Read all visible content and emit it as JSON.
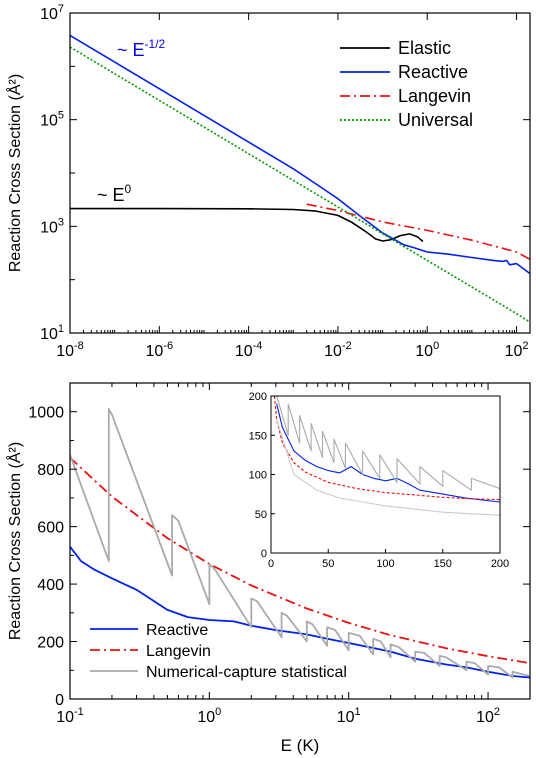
{
  "chart_data": [
    {
      "id": "top",
      "type": "line",
      "ylabel": "Reaction Cross Section (Å²)",
      "x_scale": "log",
      "y_scale": "log",
      "xlim": [
        1e-08,
        200
      ],
      "ylim": [
        10,
        10000000.0
      ],
      "x_ticks": [
        {
          "value": 1e-08,
          "base": "10",
          "exp": "-8"
        },
        {
          "value": 1e-06,
          "base": "10",
          "exp": "-6"
        },
        {
          "value": 0.0001,
          "base": "10",
          "exp": "-4"
        },
        {
          "value": 0.01,
          "base": "10",
          "exp": "-2"
        },
        {
          "value": 1,
          "base": "10",
          "exp": "0"
        },
        {
          "value": 100,
          "base": "10",
          "exp": "2"
        }
      ],
      "y_ticks": [
        {
          "value": 10,
          "base": "10",
          "exp": "1"
        },
        {
          "value": 1000,
          "base": "10",
          "exp": "3"
        },
        {
          "value": 100000,
          "base": "10",
          "exp": "5"
        },
        {
          "value": 10000000,
          "base": "10",
          "exp": "7"
        }
      ],
      "legend_position": "top-right",
      "annotations": [
        {
          "base": "~ E",
          "exp": "-1/2",
          "color": "#0000ee"
        },
        {
          "base": "~ E",
          "exp": "0",
          "color": "#000000"
        }
      ],
      "series": [
        {
          "name": "Elastic",
          "color": "#000000",
          "dash": "solid",
          "x": [
            1e-08,
            1e-06,
            0.0001,
            0.001,
            0.003,
            0.01,
            0.02,
            0.04,
            0.07,
            0.1,
            0.15,
            0.25,
            0.4,
            0.6,
            0.8
          ],
          "y": [
            2150,
            2150,
            2130,
            2070,
            1950,
            1600,
            1200,
            820,
            580,
            530,
            560,
            670,
            720,
            640,
            520
          ]
        },
        {
          "name": "Reactive",
          "color": "#0022ee",
          "dash": "solid",
          "x": [
            1e-08,
            1e-07,
            1e-06,
            1e-05,
            0.0001,
            0.001,
            0.003,
            0.01,
            0.03,
            0.1,
            0.3,
            0.5,
            1,
            3,
            10,
            30,
            50,
            60,
            70,
            100,
            200
          ],
          "y": [
            3800000,
            1200000,
            380000,
            120000,
            38000,
            12000,
            6500,
            3300,
            1600,
            750,
            450,
            400,
            330,
            300,
            260,
            230,
            220,
            230,
            190,
            200,
            130
          ]
        },
        {
          "name": "Langevin",
          "color": "#ee1111",
          "dash": "10,4,2,4",
          "x": [
            0.002,
            0.01,
            0.1,
            1,
            10,
            100,
            200
          ],
          "y": [
            2600,
            1980,
            1210,
            840,
            550,
            330,
            240
          ]
        },
        {
          "name": "Universal",
          "color": "#009900",
          "dash": "2,2",
          "x": [
            1e-08,
            1e-06,
            0.0001,
            0.01,
            1,
            100,
            200
          ],
          "y": [
            2300000,
            230000,
            23000,
            2300,
            230,
            23,
            16
          ]
        }
      ]
    },
    {
      "id": "bottom",
      "type": "line",
      "xlabel": "E (K)",
      "ylabel": "Reaction Cross Section (Å²)",
      "x_scale": "log",
      "y_scale": "linear",
      "xlim": [
        0.1,
        200
      ],
      "ylim": [
        0,
        1100
      ],
      "x_ticks": [
        {
          "value": 0.1,
          "base": "10",
          "exp": "-1"
        },
        {
          "value": 1,
          "base": "10",
          "exp": "0"
        },
        {
          "value": 10,
          "base": "10",
          "exp": "1"
        },
        {
          "value": 100,
          "base": "10",
          "exp": "2"
        }
      ],
      "y_ticks": [
        0,
        200,
        400,
        600,
        800,
        1000
      ],
      "legend_position": "bottom-left",
      "series": [
        {
          "name": "Reactive",
          "color": "#0022ee",
          "dash": "solid",
          "x": [
            0.1,
            0.12,
            0.15,
            0.2,
            0.3,
            0.5,
            0.7,
            1,
            1.5,
            2,
            3,
            5,
            7,
            10,
            20,
            30,
            50,
            70,
            100,
            150,
            200
          ],
          "y": [
            530,
            480,
            450,
            420,
            380,
            310,
            285,
            275,
            270,
            255,
            240,
            225,
            210,
            195,
            165,
            140,
            120,
            110,
            95,
            80,
            75
          ]
        },
        {
          "name": "Langevin",
          "color": "#ee1111",
          "dash": "10,4,2,4",
          "x": [
            0.1,
            0.2,
            0.5,
            1,
            2,
            5,
            10,
            20,
            50,
            100,
            200
          ],
          "y": [
            840,
            705,
            560,
            470,
            395,
            315,
            265,
            222,
            177,
            149,
            125
          ]
        },
        {
          "name": "Numerical-capture statistical",
          "color": "#aaaaaa",
          "dash": "solid",
          "x": [
            0.1,
            0.19,
            0.19,
            0.2,
            0.54,
            0.54,
            0.6,
            1,
            1,
            1.1,
            2,
            2,
            2.2,
            3.3,
            3.3,
            3.6,
            5,
            5,
            5.5,
            7,
            7,
            8,
            10,
            10,
            12,
            15,
            15,
            17,
            20,
            20,
            23,
            30,
            30,
            35,
            45,
            45,
            50,
            70,
            70,
            80,
            100,
            100,
            120,
            150,
            150,
            200
          ],
          "y": [
            850,
            480,
            1010,
            990,
            430,
            640,
            620,
            330,
            470,
            450,
            250,
            350,
            340,
            215,
            300,
            290,
            200,
            270,
            260,
            185,
            250,
            240,
            170,
            230,
            220,
            155,
            210,
            200,
            145,
            190,
            180,
            130,
            165,
            160,
            115,
            150,
            145,
            100,
            130,
            125,
            85,
            115,
            110,
            75,
            95,
            80
          ]
        }
      ],
      "inset": {
        "type": "line",
        "x_scale": "linear",
        "y_scale": "linear",
        "xlim": [
          0,
          200
        ],
        "ylim": [
          0,
          200
        ],
        "x_ticks": [
          0,
          50,
          100,
          150,
          200
        ],
        "y_ticks": [
          0,
          50,
          100,
          150,
          200
        ],
        "series": [
          {
            "name": "Reactive",
            "color": "#0022ee",
            "dash": "solid",
            "x": [
              5,
              10,
              15,
              20,
              30,
              40,
              50,
              60,
              70,
              80,
              90,
              100,
              110,
              120,
              130,
              150,
              170,
              200
            ],
            "y": [
              190,
              160,
              145,
              130,
              118,
              110,
              105,
              102,
              110,
              100,
              95,
              92,
              95,
              88,
              80,
              75,
              70,
              65
            ]
          },
          {
            "name": "Langevin",
            "color": "#ee1111",
            "dash": "3,2",
            "x": [
              3,
              5,
              10,
              20,
              30,
              50,
              75,
              100,
              125,
              150,
              175,
              200
            ],
            "y": [
              200,
              170,
              140,
              115,
              103,
              90,
              82,
              77,
              74,
              71,
              69,
              68
            ]
          },
          {
            "name": "Numerical-capture statistical",
            "color": "#aaaaaa",
            "dash": "solid",
            "x": [
              5,
              15,
              15,
              25,
              25,
              35,
              35,
              45,
              45,
              55,
              55,
              65,
              65,
              80,
              80,
              95,
              95,
              110,
              110,
              130,
              130,
              150,
              150,
              175,
              175,
              200
            ],
            "y": [
              200,
              150,
              190,
              140,
              175,
              130,
              165,
              122,
              155,
              115,
              145,
              108,
              140,
              100,
              130,
              95,
              125,
              90,
              120,
              88,
              110,
              85,
              105,
              80,
              95,
              82
            ]
          },
          {
            "name": "Numerical-capture statistical",
            "color": "#cccccc",
            "dash": "solid",
            "x": [
              5,
              20,
              40,
              60,
              80,
              100,
              120,
              150,
              175,
              200
            ],
            "y": [
              170,
              100,
              80,
              70,
              65,
              60,
              57,
              52,
              50,
              48
            ]
          }
        ]
      }
    }
  ]
}
